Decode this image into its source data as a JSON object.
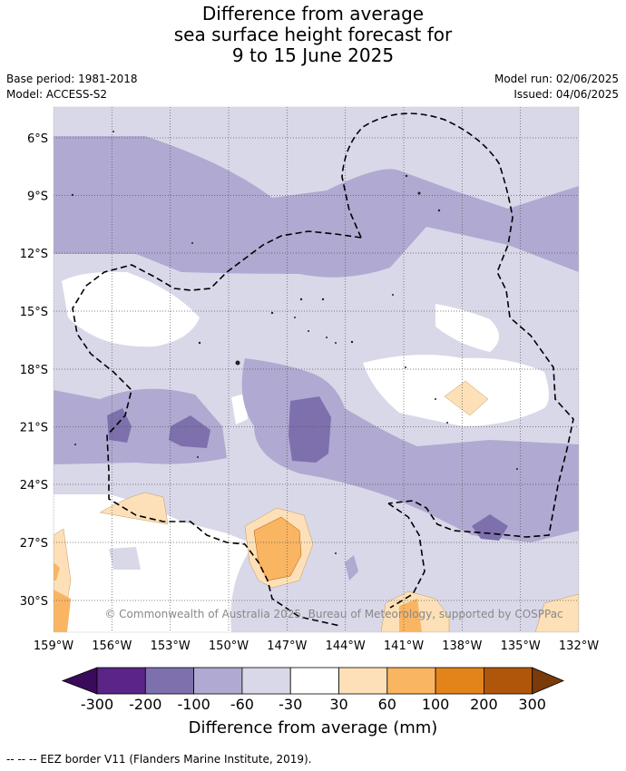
{
  "title": [
    "Difference from average",
    "sea surface height forecast for",
    "9 to 15 June 2025"
  ],
  "base_period": "Base period: 1981-2018",
  "model": "Model: ACCESS-S2",
  "model_run": "Model run: 02/06/2025",
  "issued": "Issued: 04/06/2025",
  "map": {
    "lon_ticks": [
      "159°W",
      "156°W",
      "153°W",
      "150°W",
      "147°W",
      "144°W",
      "141°W",
      "138°W",
      "135°W",
      "132°W"
    ],
    "lat_ticks": [
      "6°S",
      "9°S",
      "12°S",
      "15°S",
      "18°S",
      "21°S",
      "24°S",
      "27°S",
      "30°S"
    ],
    "copyright": "© Commonwealth of Australia 2025, Bureau of Meteorology, supported by COSPPac"
  },
  "colorbar": {
    "ticks": [
      "-300",
      "-200",
      "-100",
      "-60",
      "-30",
      "30",
      "60",
      "100",
      "200",
      "300"
    ],
    "colors": [
      "#3a0b5a",
      "#5a2586",
      "#7d70ad",
      "#b0a9d1",
      "#d9d8e9",
      "#ffffff",
      "#fde0b7",
      "#f9b562",
      "#e3841b",
      "#b0560b",
      "#7b3a0a"
    ],
    "label": "Difference from average (mm)"
  },
  "legend_eez": "--  --  -- EEZ border V11 (Flanders Marine Institute, 2019)."
}
